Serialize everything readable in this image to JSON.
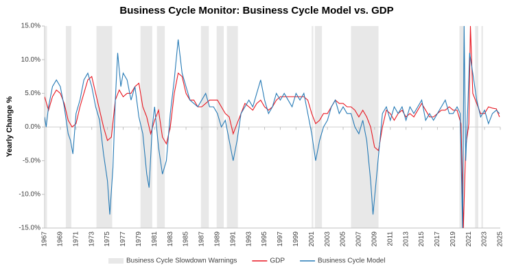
{
  "chart_data": {
    "type": "line",
    "title": "Business Cycle Monitor: Business Cycle Model vs. GDP",
    "y_label": "Yearly Change %",
    "xlim": [
      1967,
      2025
    ],
    "xticks": [
      1967,
      1969,
      1971,
      1973,
      1975,
      1977,
      1979,
      1981,
      1983,
      1985,
      1987,
      1989,
      1991,
      1993,
      1995,
      1997,
      1999,
      2001,
      2003,
      2005,
      2007,
      2009,
      2011,
      2013,
      2015,
      2017,
      2019,
      2021,
      2023,
      2025
    ],
    "ylim": [
      -15,
      15
    ],
    "yticks": [
      {
        "value": -15,
        "label": "-15.0%"
      },
      {
        "value": -10,
        "label": "-10.0%"
      },
      {
        "value": -5,
        "label": "-5.0%"
      },
      {
        "value": 0,
        "label": "0.0%"
      },
      {
        "value": 5,
        "label": "5.0%"
      },
      {
        "value": 10,
        "label": "10.0%"
      },
      {
        "value": 15,
        "label": "15.0%"
      }
    ],
    "legend": "bottom",
    "shaded_regions": {
      "name": "Business Cycle Slowdown Warnings",
      "color": "#e8e8e8",
      "ranges": [
        [
          1967.1,
          1967.3
        ],
        [
          1969.7,
          1970.4
        ],
        [
          1973.6,
          1975.6
        ],
        [
          1979.2,
          1980.7
        ],
        [
          1981.3,
          1982.3
        ],
        [
          1986.9,
          1987.9
        ],
        [
          1988.9,
          1989.8
        ],
        [
          1990.2,
          1991.6
        ],
        [
          2001.0,
          2001.2
        ],
        [
          2001.4,
          2002.3
        ],
        [
          2006.0,
          2009.5
        ],
        [
          2019.8,
          2020.4
        ],
        [
          2021.8,
          2022.2
        ],
        [
          2022.6,
          2022.8
        ]
      ]
    },
    "series": [
      {
        "name": "GDP",
        "color": "#e8141e",
        "x": [
          1967.0,
          1967.5,
          1968.0,
          1968.5,
          1969.0,
          1969.5,
          1970.0,
          1970.5,
          1971.0,
          1971.5,
          1972.0,
          1972.5,
          1973.0,
          1973.5,
          1974.0,
          1974.5,
          1975.0,
          1975.5,
          1976.0,
          1976.5,
          1977.0,
          1977.5,
          1978.0,
          1978.5,
          1979.0,
          1979.5,
          1980.0,
          1980.5,
          1981.0,
          1981.5,
          1982.0,
          1982.5,
          1983.0,
          1983.5,
          1984.0,
          1984.5,
          1985.0,
          1985.5,
          1986.0,
          1986.5,
          1987.0,
          1987.5,
          1988.0,
          1988.5,
          1989.0,
          1989.5,
          1990.0,
          1990.5,
          1991.0,
          1991.5,
          1992.0,
          1992.5,
          1993.0,
          1993.5,
          1994.0,
          1994.5,
          1995.0,
          1995.5,
          1996.0,
          1996.5,
          1997.0,
          1997.5,
          1998.0,
          1998.5,
          1999.0,
          1999.5,
          2000.0,
          2000.5,
          2001.0,
          2001.5,
          2002.0,
          2002.5,
          2003.0,
          2003.5,
          2004.0,
          2004.5,
          2005.0,
          2005.5,
          2006.0,
          2006.5,
          2007.0,
          2007.5,
          2008.0,
          2008.5,
          2009.0,
          2009.5,
          2010.0,
          2010.5,
          2011.0,
          2011.5,
          2012.0,
          2012.5,
          2013.0,
          2013.5,
          2014.0,
          2014.5,
          2015.0,
          2015.5,
          2016.0,
          2016.5,
          2017.0,
          2017.5,
          2018.0,
          2018.5,
          2019.0,
          2019.5,
          2020.0,
          2020.3,
          2020.6,
          2021.0,
          2021.2,
          2021.5,
          2022.0,
          2022.5,
          2023.0,
          2023.5,
          2024.0,
          2024.5,
          2024.9
        ],
        "values": [
          4.5,
          2.5,
          4.5,
          5.5,
          5,
          3.5,
          1,
          0,
          0.5,
          3,
          5,
          7,
          7.5,
          5,
          2.5,
          0,
          -2,
          -1.5,
          4,
          5.5,
          4.5,
          5,
          5,
          6,
          6.5,
          3,
          1.5,
          -1,
          1,
          2.5,
          -1.5,
          -2.5,
          0,
          5,
          8,
          7.5,
          5,
          4,
          4,
          3,
          3,
          3.5,
          4,
          4,
          4,
          3,
          2,
          1.5,
          -1,
          0.5,
          2,
          3.5,
          3,
          2.5,
          3.5,
          4,
          3,
          2.5,
          3,
          4,
          4.5,
          4.5,
          4.5,
          4.5,
          4.5,
          4.5,
          4.5,
          4,
          2,
          0.5,
          1,
          2,
          2,
          3,
          4,
          3.5,
          3.5,
          3,
          3,
          2.5,
          1.5,
          2.5,
          1.5,
          0,
          -3,
          -3.5,
          0,
          2.5,
          2,
          1,
          2,
          2.5,
          1.5,
          2,
          1.5,
          2.5,
          3.5,
          2.5,
          1.5,
          1.5,
          2,
          2.5,
          2.5,
          3,
          2.5,
          2.5,
          0.5,
          -15,
          -3,
          0.5,
          15,
          5,
          3.5,
          2,
          2,
          3,
          2.8,
          2.7,
          1.5
        ]
      },
      {
        "name": "Business Cycle Model",
        "color": "#2479b5",
        "x": [
          1967.0,
          1967.2,
          1967.5,
          1968.0,
          1968.5,
          1969.0,
          1969.5,
          1970.0,
          1970.3,
          1970.6,
          1971.0,
          1971.5,
          1972.0,
          1972.5,
          1973.0,
          1973.5,
          1974.0,
          1974.5,
          1975.0,
          1975.3,
          1975.7,
          1976.0,
          1976.3,
          1976.7,
          1977.0,
          1977.5,
          1978.0,
          1978.5,
          1979.0,
          1979.5,
          1980.0,
          1980.3,
          1980.7,
          1981.0,
          1981.5,
          1982.0,
          1982.5,
          1983.0,
          1983.5,
          1984.0,
          1984.5,
          1985.0,
          1985.5,
          1986.0,
          1986.5,
          1987.0,
          1987.5,
          1988.0,
          1988.5,
          1989.0,
          1989.5,
          1990.0,
          1990.5,
          1991.0,
          1991.5,
          1992.0,
          1992.5,
          1993.0,
          1993.5,
          1994.0,
          1994.5,
          1995.0,
          1995.5,
          1996.0,
          1996.5,
          1997.0,
          1997.5,
          1998.0,
          1998.5,
          1999.0,
          1999.5,
          2000.0,
          2000.5,
          2001.0,
          2001.5,
          2002.0,
          2002.5,
          2003.0,
          2003.5,
          2004.0,
          2004.5,
          2005.0,
          2005.5,
          2006.0,
          2006.5,
          2007.0,
          2007.5,
          2008.0,
          2008.5,
          2008.8,
          2009.2,
          2009.6,
          2010.0,
          2010.5,
          2011.0,
          2011.5,
          2012.0,
          2012.5,
          2013.0,
          2013.5,
          2014.0,
          2014.5,
          2015.0,
          2015.5,
          2016.0,
          2016.5,
          2017.0,
          2017.5,
          2018.0,
          2018.5,
          2019.0,
          2019.5,
          2019.9,
          2020.2,
          2020.4,
          2020.6,
          2020.9,
          2021.1,
          2021.5,
          2022.0,
          2022.5,
          2023.0,
          2023.5,
          2024.0,
          2024.5,
          2024.9
        ],
        "values": [
          1.5,
          0,
          3,
          6,
          7,
          6,
          3,
          -1,
          -2,
          -4,
          2,
          4,
          7,
          8,
          6,
          3,
          1,
          -4,
          -8,
          -13,
          -6,
          4,
          11,
          6,
          8,
          7,
          4,
          6,
          1.5,
          -1,
          -7,
          -9,
          0,
          3,
          -3,
          -7,
          -5,
          2,
          7,
          13,
          8,
          6,
          4,
          3.5,
          3,
          4,
          5,
          3,
          3,
          2,
          0,
          1,
          -2,
          -5,
          -2,
          2,
          3,
          4,
          3,
          5,
          7,
          4,
          2,
          3,
          5,
          4,
          5,
          4,
          3,
          5,
          4,
          5,
          2,
          -1,
          -5,
          -2,
          0,
          1,
          3,
          4,
          2,
          3,
          2,
          2,
          0,
          -1,
          1,
          -2,
          -8,
          -13,
          -8,
          -3,
          2,
          3,
          1,
          3,
          2,
          3,
          1,
          3,
          2,
          3,
          4,
          1,
          2,
          1,
          2,
          3,
          4,
          2,
          2,
          3,
          2,
          -15,
          15,
          -5,
          4,
          11,
          8,
          4,
          1.5,
          2.5,
          0.5,
          2,
          2.5,
          2
        ]
      }
    ]
  }
}
